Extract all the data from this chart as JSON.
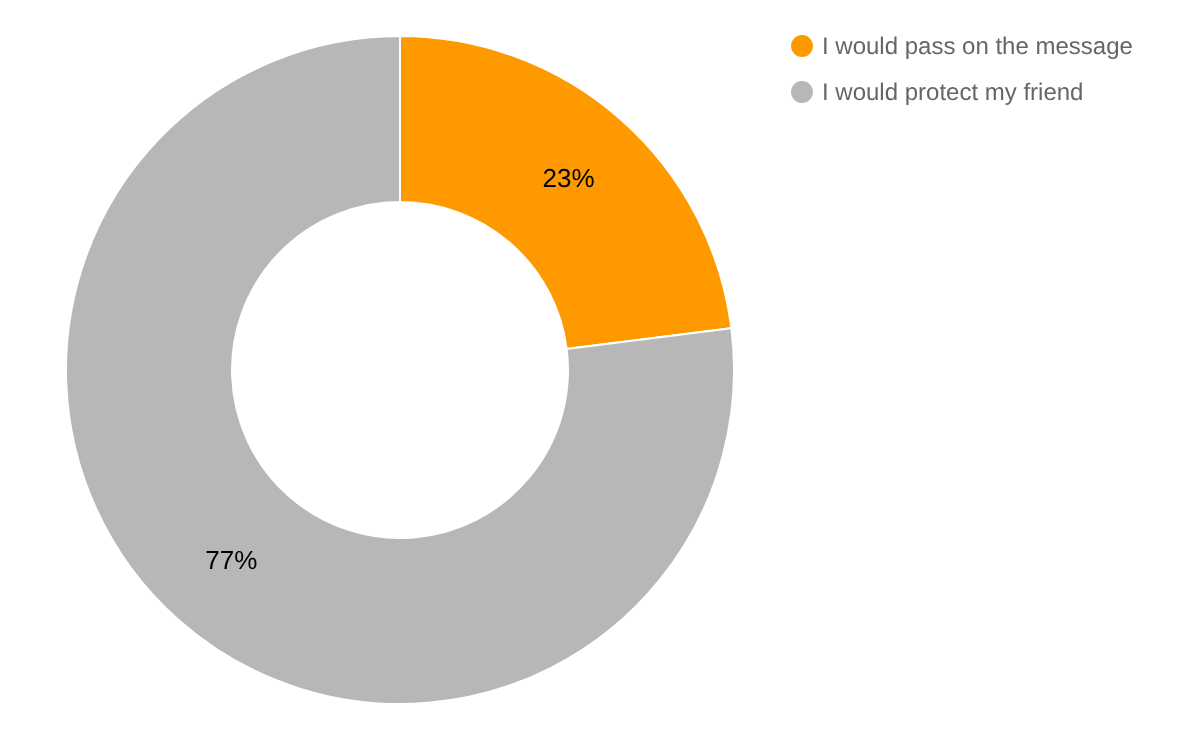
{
  "chart_data": {
    "type": "donut",
    "categories": [
      "I would pass on the message",
      "I would protect my friend"
    ],
    "values": [
      23,
      77
    ],
    "colors": [
      "#ff9900",
      "#b7b7b7"
    ],
    "value_labels": [
      "23%",
      "77%"
    ],
    "legend": "top right"
  }
}
